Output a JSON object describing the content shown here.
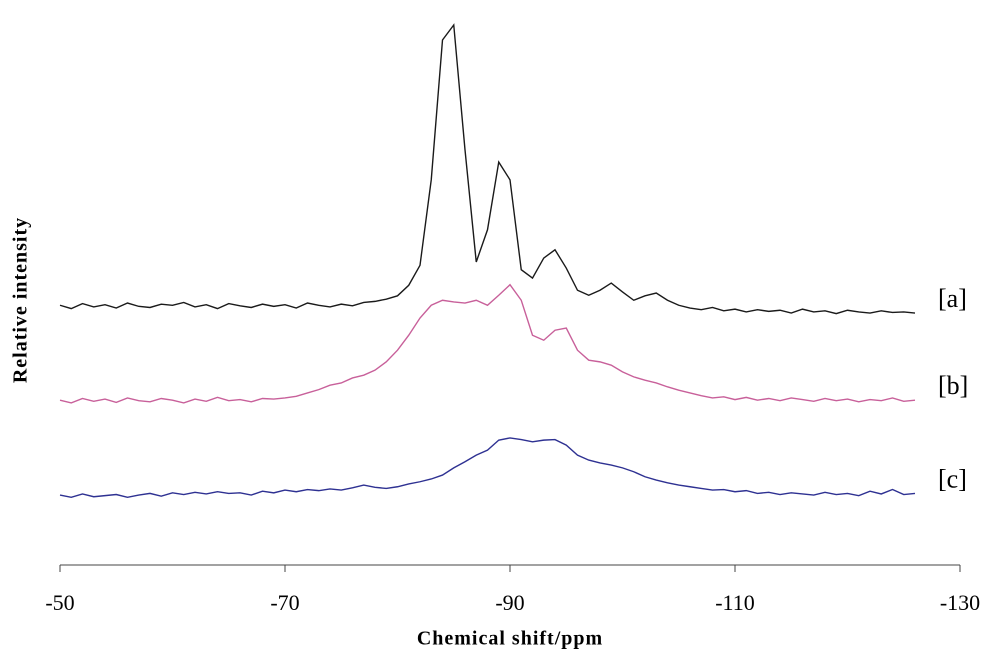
{
  "chart_data": {
    "type": "line",
    "xlabel": "Chemical shift/ppm",
    "ylabel": "Relative intensity",
    "x": [
      -50,
      -51,
      -52,
      -53,
      -54,
      -55,
      -56,
      -57,
      -58,
      -59,
      -60,
      -61,
      -62,
      -63,
      -64,
      -65,
      -66,
      -67,
      -68,
      -69,
      -70,
      -71,
      -72,
      -73,
      -74,
      -75,
      -76,
      -77,
      -78,
      -79,
      -80,
      -81,
      -82,
      -83,
      -84,
      -85,
      -86,
      -87,
      -88,
      -89,
      -90,
      -91,
      -92,
      -93,
      -94,
      -95,
      -96,
      -97,
      -98,
      -99,
      -100,
      -101,
      -102,
      -103,
      -104,
      -105,
      -106,
      -107,
      -108,
      -109,
      -110,
      -111,
      -112,
      -113,
      -114,
      -115,
      -116,
      -117,
      -118,
      -119,
      -120,
      -121,
      -122,
      -123,
      -124,
      -125,
      -126
    ],
    "series": [
      {
        "name": "[a]",
        "color": "#1a1a1a",
        "values": [
          46.8,
          46.2,
          47.1,
          46.5,
          46.9,
          46.3,
          47.2,
          46.6,
          46.4,
          47.0,
          46.8,
          47.3,
          46.5,
          46.9,
          46.2,
          47.1,
          46.7,
          46.4,
          47.0,
          46.6,
          46.9,
          46.3,
          47.2,
          46.8,
          46.5,
          47.0,
          46.7,
          47.3,
          47.5,
          47.9,
          48.5,
          50.4,
          54,
          69.4,
          94.6,
          97.3,
          74.8,
          54.6,
          60.4,
          72.6,
          69.4,
          53.2,
          51.7,
          55.3,
          56.8,
          53.5,
          49.5,
          48.6,
          49.5,
          50.8,
          49.2,
          47.7,
          48.5,
          49,
          47.7,
          46.8,
          46.3,
          46.0,
          46.4,
          45.8,
          46.1,
          45.6,
          46.0,
          45.7,
          45.9,
          45.4,
          46.1,
          45.6,
          45.8,
          45.3,
          45.9,
          45.6,
          45.4,
          45.8,
          45.5,
          45.6,
          45.4
        ]
      },
      {
        "name": "[b]",
        "color": "#c8609a",
        "values": [
          29.7,
          29.2,
          30.0,
          29.5,
          29.9,
          29.3,
          30.1,
          29.6,
          29.4,
          30.0,
          29.7,
          29.2,
          29.9,
          29.5,
          30.2,
          29.6,
          29.8,
          29.4,
          30.0,
          29.9,
          30.1,
          30.4,
          31,
          31.6,
          32.4,
          32.8,
          33.7,
          34.2,
          35.1,
          36.6,
          38.7,
          41.4,
          44.5,
          46.8,
          47.7,
          47.4,
          47.2,
          47.7,
          46.8,
          48.6,
          50.5,
          47.7,
          41.4,
          40.5,
          42.3,
          42.7,
          38.7,
          36.9,
          36.6,
          36,
          34.8,
          33.9,
          33.3,
          32.8,
          32.1,
          31.5,
          31,
          30.5,
          30.1,
          30.3,
          29.8,
          30.2,
          29.7,
          30.0,
          29.6,
          30.1,
          29.8,
          29.5,
          30.0,
          29.6,
          29.9,
          29.4,
          29.8,
          29.6,
          30.1,
          29.5,
          29.7
        ]
      },
      {
        "name": "[c]",
        "color": "#2e3192",
        "values": [
          12.6,
          12.2,
          12.8,
          12.3,
          12.5,
          12.7,
          12.2,
          12.6,
          12.9,
          12.4,
          13.0,
          12.7,
          13.1,
          12.8,
          13.2,
          12.9,
          13.0,
          12.6,
          13.3,
          13.0,
          13.5,
          13.2,
          13.6,
          13.4,
          13.7,
          13.5,
          13.9,
          14.4,
          14.0,
          13.8,
          14.1,
          14.6,
          15,
          15.5,
          16.2,
          17.5,
          18.6,
          19.8,
          20.7,
          22.5,
          22.9,
          22.6,
          22.2,
          22.5,
          22.6,
          21.6,
          19.8,
          18.9,
          18.4,
          18,
          17.5,
          16.8,
          15.9,
          15.3,
          14.8,
          14.4,
          14.1,
          13.8,
          13.5,
          13.6,
          13.2,
          13.4,
          12.9,
          13.1,
          12.7,
          13.0,
          12.8,
          12.6,
          13.1,
          12.7,
          12.9,
          12.5,
          13.3,
          12.8,
          13.6,
          12.7,
          12.9
        ]
      }
    ],
    "xlim": [
      -50,
      -130
    ],
    "xticks": [
      -50,
      -70,
      -90,
      -110,
      -130
    ],
    "ylim": [
      0,
      100
    ]
  }
}
